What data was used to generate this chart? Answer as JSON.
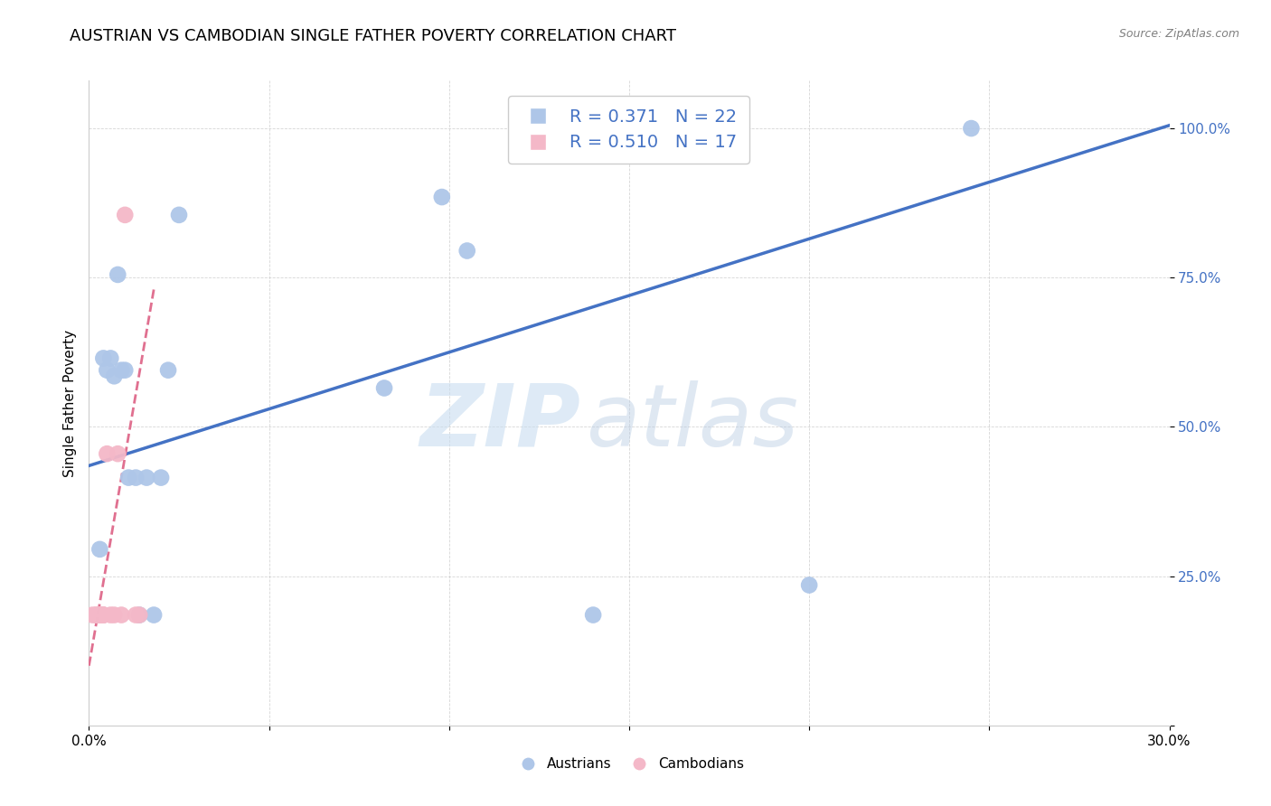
{
  "title": "AUSTRIAN VS CAMBODIAN SINGLE FATHER POVERTY CORRELATION CHART",
  "source": "Source: ZipAtlas.com",
  "ylabel": "Single Father Poverty",
  "xlim": [
    0.0,
    0.3
  ],
  "ylim": [
    0.0,
    1.08
  ],
  "austrians_x": [
    0.003,
    0.004,
    0.005,
    0.006,
    0.007,
    0.008,
    0.009,
    0.01,
    0.011,
    0.013,
    0.014,
    0.016,
    0.018,
    0.02,
    0.022,
    0.025,
    0.082,
    0.098,
    0.105,
    0.14,
    0.2,
    0.245
  ],
  "austrians_y": [
    0.295,
    0.615,
    0.595,
    0.615,
    0.585,
    0.755,
    0.595,
    0.595,
    0.415,
    0.415,
    0.185,
    0.415,
    0.185,
    0.415,
    0.595,
    0.855,
    0.565,
    0.885,
    0.795,
    0.185,
    0.235,
    1.0
  ],
  "cambodians_x": [
    0.001,
    0.002,
    0.002,
    0.003,
    0.003,
    0.003,
    0.004,
    0.004,
    0.004,
    0.005,
    0.006,
    0.007,
    0.008,
    0.009,
    0.01,
    0.013,
    0.014
  ],
  "cambodians_y": [
    0.185,
    0.185,
    0.185,
    0.185,
    0.185,
    0.185,
    0.185,
    0.185,
    0.185,
    0.455,
    0.185,
    0.185,
    0.455,
    0.185,
    0.855,
    0.185,
    0.185
  ],
  "blue_intercept": 0.435,
  "blue_slope": 1.9,
  "pink_intercept": 0.1,
  "pink_slope": 35.0,
  "austrians_color": "#aec6e8",
  "cambodians_color": "#f4b8c8",
  "blue_line_color": "#4472c4",
  "pink_line_color": "#e07090",
  "legend_R_austrians": "R = 0.371",
  "legend_N_austrians": "N = 22",
  "legend_R_cambodians": "R = 0.510",
  "legend_N_cambodians": "N = 17",
  "watermark_zip": "ZIP",
  "watermark_atlas": "atlas",
  "title_fontsize": 13,
  "label_fontsize": 11,
  "tick_fontsize": 11,
  "legend_fontsize": 14
}
